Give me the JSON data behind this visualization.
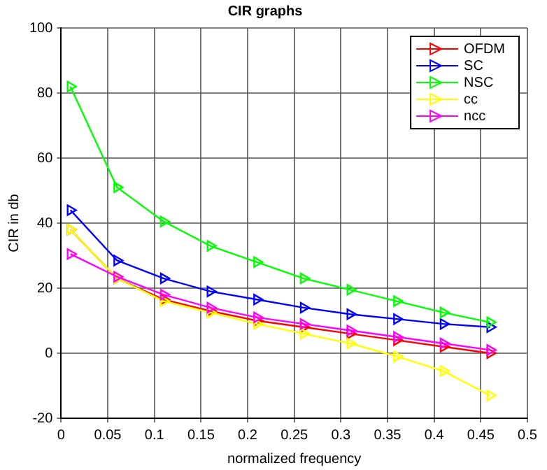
{
  "chart_data": {
    "type": "line",
    "title": "CIR graphs",
    "xlabel": "normalized frequency",
    "ylabel": "CIR in db",
    "x": [
      0.01,
      0.06,
      0.11,
      0.16,
      0.21,
      0.26,
      0.31,
      0.36,
      0.41,
      0.46
    ],
    "xlim": [
      0,
      0.5
    ],
    "xticks": [
      0,
      0.05,
      0.1,
      0.15,
      0.2,
      0.25,
      0.3,
      0.35,
      0.4,
      0.45,
      0.5
    ],
    "ylim": [
      -20,
      100
    ],
    "yticks": [
      -20,
      0,
      20,
      40,
      60,
      80,
      100
    ],
    "grid": true,
    "legend": "top right",
    "marker": "triangle",
    "line_style": "solid",
    "series": [
      {
        "name": "OFDM",
        "color": "#ff0000",
        "values": [
          38,
          23,
          16.5,
          13,
          10,
          8,
          6,
          4,
          2,
          0
        ]
      },
      {
        "name": "SC",
        "color": "#0000ff",
        "values": [
          44,
          28.5,
          23,
          19,
          16.5,
          14,
          12,
          10.5,
          9,
          8
        ]
      },
      {
        "name": "NSC",
        "color": "#00ff00",
        "values": [
          82,
          51,
          40.5,
          33,
          28,
          23,
          19.5,
          16,
          12.5,
          9.5
        ]
      },
      {
        "name": "cc",
        "color": "#ffff00",
        "values": [
          38,
          23,
          16,
          12.5,
          9,
          6,
          3,
          -1,
          -5.5,
          -13
        ]
      },
      {
        "name": "ncc",
        "color": "#ff00ff",
        "values": [
          30.5,
          23.5,
          18,
          14,
          11,
          9,
          7,
          5,
          3,
          1
        ]
      }
    ]
  }
}
